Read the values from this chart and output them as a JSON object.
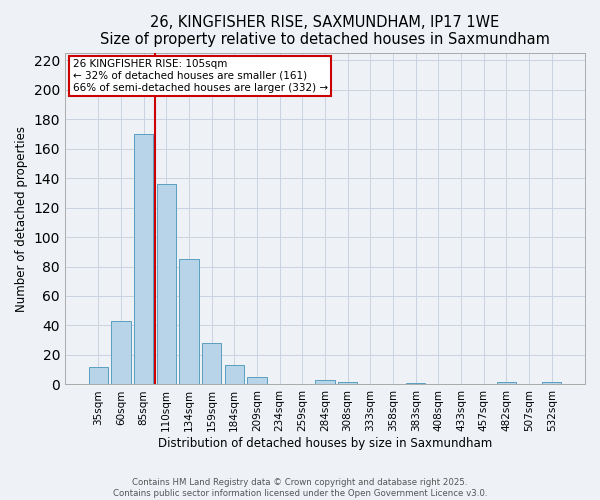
{
  "title": "26, KINGFISHER RISE, SAXMUNDHAM, IP17 1WE",
  "subtitle": "Size of property relative to detached houses in Saxmundham",
  "xlabel": "Distribution of detached houses by size in Saxmundham",
  "ylabel": "Number of detached properties",
  "bar_labels": [
    "35sqm",
    "60sqm",
    "85sqm",
    "110sqm",
    "134sqm",
    "159sqm",
    "184sqm",
    "209sqm",
    "234sqm",
    "259sqm",
    "284sqm",
    "308sqm",
    "333sqm",
    "358sqm",
    "383sqm",
    "408sqm",
    "433sqm",
    "457sqm",
    "482sqm",
    "507sqm",
    "532sqm"
  ],
  "bar_values": [
    12,
    43,
    170,
    136,
    85,
    28,
    13,
    5,
    0,
    0,
    3,
    2,
    0,
    0,
    1,
    0,
    0,
    0,
    2,
    0,
    2
  ],
  "bar_color": "#b8d4e8",
  "bar_edgecolor": "#5a9fc0",
  "vline_x_idx": 2.5,
  "vline_color": "#cc0000",
  "annotation_title": "26 KINGFISHER RISE: 105sqm",
  "annotation_line1": "← 32% of detached houses are smaller (161)",
  "annotation_line2": "66% of semi-detached houses are larger (332) →",
  "annotation_box_edgecolor": "#cc0000",
  "ylim": [
    0,
    225
  ],
  "yticks": [
    0,
    20,
    40,
    60,
    80,
    100,
    120,
    140,
    160,
    180,
    200,
    220
  ],
  "footer1": "Contains HM Land Registry data © Crown copyright and database right 2025.",
  "footer2": "Contains public sector information licensed under the Open Government Licence v3.0.",
  "bg_color": "#eef2f7",
  "plot_bg_color": "#eef2f7",
  "grid_color": "#c8d4e0",
  "title_fontsize": 10.5,
  "subtitle_fontsize": 9,
  "tick_fontsize": 7.5,
  "axis_label_fontsize": 8.5,
  "annotation_fontsize": 7.5,
  "footer_fontsize": 6.2
}
